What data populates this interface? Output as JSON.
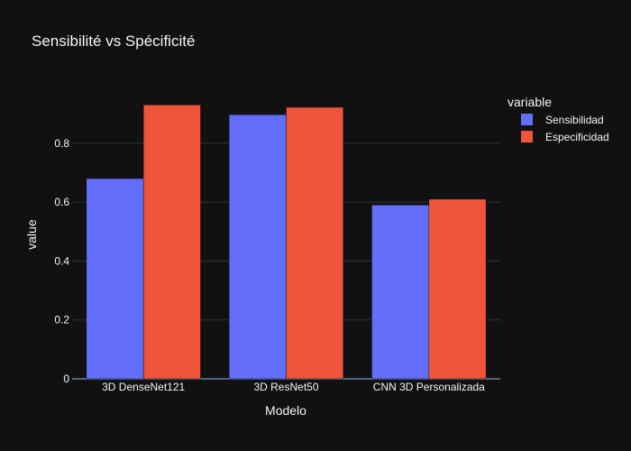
{
  "chart_data": {
    "type": "bar",
    "title": "Sensibilité vs Spécificité",
    "xlabel": "Modelo",
    "ylabel": "value",
    "categories": [
      "3D DenseNet121",
      "3D ResNet50",
      "CNN 3D Personalizada"
    ],
    "series": [
      {
        "name": "Sensibilidad",
        "color": "#636efa",
        "values": [
          0.68,
          0.897,
          0.59
        ]
      },
      {
        "name": "Especificidad",
        "color": "#ef553b",
        "values": [
          0.93,
          0.922,
          0.61
        ]
      }
    ],
    "ylim": [
      0,
      0.98
    ],
    "yticks": [
      0,
      0.2,
      0.4,
      0.6,
      0.8
    ],
    "ytick_labels": [
      "0",
      "0.2",
      "0.4",
      "0.6",
      "0.8"
    ],
    "grid": true,
    "legend": {
      "title": "variable",
      "placement": "top-right"
    },
    "background": "#111111",
    "grid_color": "#283442",
    "text_color": "#f2f5fa"
  }
}
